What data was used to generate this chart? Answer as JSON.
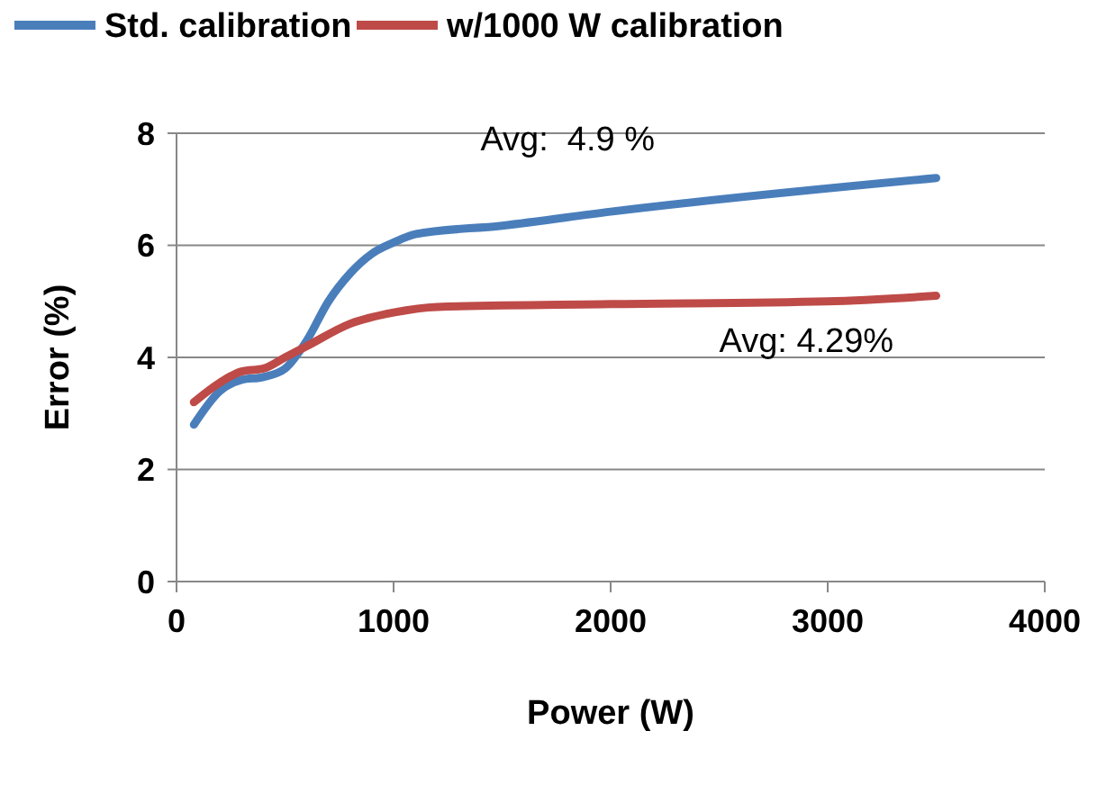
{
  "chart_data": {
    "type": "line",
    "xlabel": "Power (W)",
    "ylabel": "Error (%)",
    "xlim": [
      0,
      4000
    ],
    "xticks": [
      0,
      1000,
      2000,
      3000,
      4000
    ],
    "ylim": [
      0,
      8
    ],
    "yticks": [
      0,
      2,
      4,
      6,
      8
    ],
    "grid": "y",
    "legend": "top",
    "marker": "none",
    "line_style": "solid",
    "annotations": [
      "Avg:  4.9 %",
      "Avg: 4.29%"
    ],
    "series": [
      {
        "name": "Std. calibration",
        "color": "#4a7ebb",
        "x": [
          80,
          200,
          300,
          400,
          500,
          600,
          700,
          800,
          900,
          1000,
          1100,
          1500,
          2000,
          3500
        ],
        "values": [
          2.8,
          3.4,
          3.6,
          3.65,
          3.8,
          4.3,
          5.0,
          5.5,
          5.85,
          6.05,
          6.2,
          6.35,
          6.6,
          7.2
        ]
      },
      {
        "name": "w/1000 W calibration",
        "color": "#be4b48",
        "x": [
          80,
          200,
          300,
          400,
          500,
          600,
          800,
          1000,
          1200,
          2000,
          3000,
          3500
        ],
        "values": [
          3.2,
          3.55,
          3.75,
          3.8,
          4.0,
          4.2,
          4.6,
          4.8,
          4.9,
          4.95,
          5.0,
          5.1
        ]
      }
    ]
  }
}
